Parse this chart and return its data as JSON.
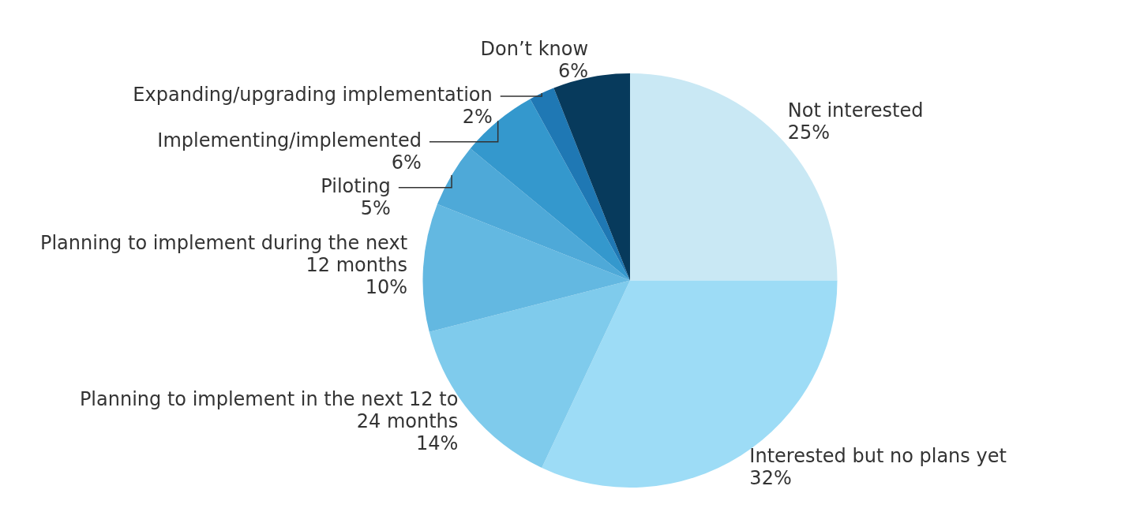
{
  "chart_data": {
    "type": "pie",
    "categories": [
      "Not interested",
      "Interested but no plans yet",
      "Planning to implement in the next 12 to 24 months",
      "Planning to implement during the next 12 months",
      "Piloting",
      "Implementing/implemented",
      "Expanding/upgrading implementation",
      "Don’t know"
    ],
    "values": [
      25,
      32,
      14,
      10,
      5,
      6,
      2,
      6
    ],
    "colors": [
      "#c9e8f4",
      "#9ddcf6",
      "#7fcbec",
      "#63b8e1",
      "#4ea9d8",
      "#3498cd",
      "#1f78b4",
      "#073a5c"
    ],
    "value_labels": [
      "25%",
      "32%",
      "14%",
      "10%",
      "5%",
      "6%",
      "2%",
      "6%"
    ],
    "legend": false
  }
}
